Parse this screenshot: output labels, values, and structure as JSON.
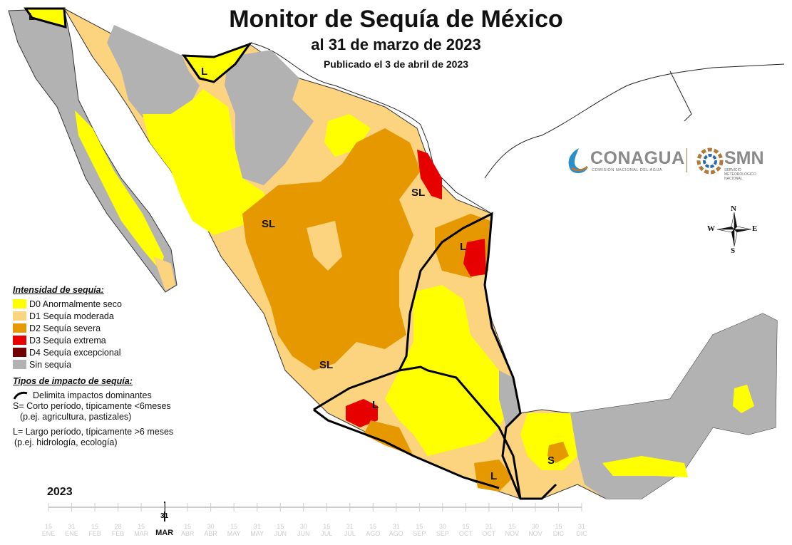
{
  "header": {
    "title": "Monitor de Sequía de México",
    "subtitle": "al 31 de marzo de 2023",
    "published": "Publicado el 3 de abril de 2023"
  },
  "legend": {
    "intensity_title": "Intensidad de sequía:",
    "categories": [
      {
        "label": "D0 Anormalmente seco",
        "color": "#ffff00"
      },
      {
        "label": "D1 Sequía moderada",
        "color": "#fcd37f"
      },
      {
        "label": "D2 Sequía severa",
        "color": "#e69800"
      },
      {
        "label": "D3 Sequía extrema",
        "color": "#e60000"
      },
      {
        "label": "D4 Sequía excepcional",
        "color": "#730000"
      },
      {
        "label": "Sin sequía",
        "color": "#b2b2b2"
      }
    ],
    "impact_title": "Tipos de impacto de sequía:",
    "impact_line": "Delimita impactos dominantes",
    "impact_s": "S= Corto período, típicamente <6meses",
    "impact_s_ex": "(p.ej. agricultura, pastizales)",
    "impact_l": "L= Largo período, típicamente >6 meses",
    "impact_l_ex": "(p.ej. hidrología, ecología)"
  },
  "region_labels": {
    "sl": "SL",
    "l": "L",
    "s": "S"
  },
  "compass": {
    "n": "N",
    "s": "S",
    "e": "E",
    "w": "W"
  },
  "logos": {
    "conagua": "CONAGUA",
    "conagua_sub": "COMISIÓN NACIONAL DEL AGUA",
    "smn": "SMN",
    "smn_sub": "SERVICIO METEOROLÓGICO NACIONAL"
  },
  "timeline": {
    "year": "2023",
    "days": [
      "15",
      "31",
      "15",
      "28",
      "15",
      "31",
      "15",
      "30",
      "15",
      "31",
      "15",
      "30",
      "15",
      "31",
      "15",
      "31",
      "15",
      "30",
      "15",
      "31",
      "15",
      "30",
      "15",
      "31"
    ],
    "months": [
      "ENE",
      "ENE",
      "FEB",
      "FEB",
      "MAR",
      "MAR",
      "ABR",
      "ABR",
      "MAY",
      "MAY",
      "JUN",
      "JUN",
      "JUL",
      "JUL",
      "AGO",
      "AGO",
      "SEP",
      "SEP",
      "OCT",
      "OCT",
      "NOV",
      "NOV",
      "DIC",
      "DIC"
    ],
    "current_index": 5
  }
}
